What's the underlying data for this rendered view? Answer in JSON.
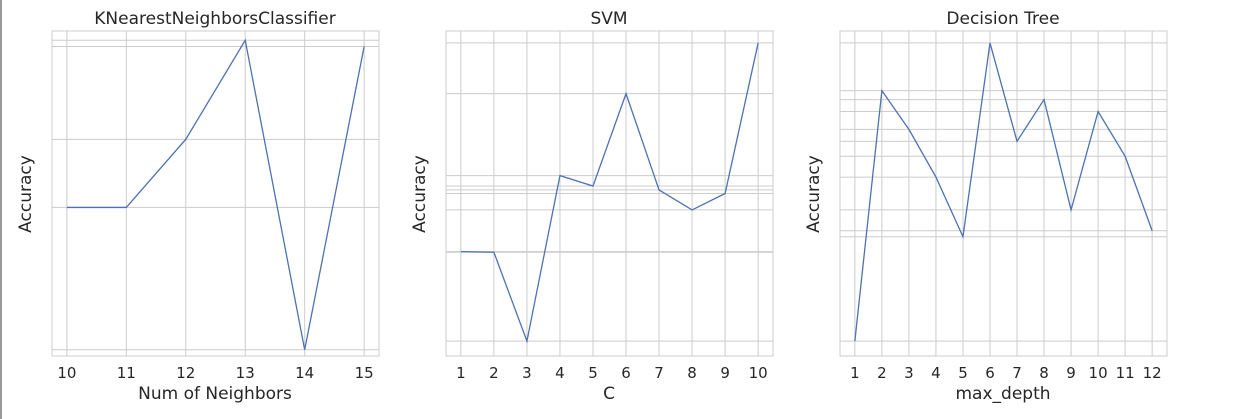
{
  "chart_data": [
    {
      "type": "line",
      "title": "KNearestNeighborsClassifier",
      "xlabel": "Num of Neighbors",
      "ylabel": "Accuracy",
      "x": [
        10,
        11,
        12,
        13,
        14,
        15
      ],
      "y": [
        0.46,
        0.46,
        0.68,
        1.0,
        0.0,
        0.98
      ],
      "x_ticks": [
        "10",
        "11",
        "12",
        "13",
        "14",
        "15"
      ],
      "xlim": [
        9.75,
        15.25
      ],
      "ylim": [
        -0.02,
        1.03
      ],
      "grid": true,
      "color": "#4c72b0"
    },
    {
      "type": "line",
      "title": "SVM",
      "xlabel": "C",
      "ylabel": "Accuracy",
      "x": [
        1,
        2,
        3,
        4,
        5,
        6,
        7,
        8,
        9,
        10
      ],
      "y": [
        0.3,
        0.298,
        0.0,
        0.555,
        0.52,
        0.83,
        0.507,
        0.44,
        0.495,
        1.0
      ],
      "x_ticks": [
        "1",
        "2",
        "3",
        "4",
        "5",
        "6",
        "7",
        "8",
        "9",
        "10"
      ],
      "xlim": [
        0.55,
        10.45
      ],
      "ylim": [
        -0.05,
        1.04
      ],
      "grid": true,
      "color": "#4c72b0"
    },
    {
      "type": "line",
      "title": "Decision Tree",
      "xlabel": "max_depth",
      "ylabel": "Accuracy",
      "x": [
        1,
        2,
        3,
        4,
        5,
        6,
        7,
        8,
        9,
        10,
        11,
        12
      ],
      "y": [
        0.0,
        0.84,
        0.71,
        0.55,
        0.35,
        1.0,
        0.67,
        0.81,
        0.44,
        0.77,
        0.62,
        0.37
      ],
      "x_ticks": [
        "1",
        "2",
        "3",
        "4",
        "5",
        "6",
        "7",
        "8",
        "9",
        "10",
        "11",
        "12"
      ],
      "xlim": [
        0.45,
        12.55
      ],
      "ylim": [
        -0.05,
        1.04
      ],
      "grid": true,
      "color": "#4c72b0"
    }
  ]
}
